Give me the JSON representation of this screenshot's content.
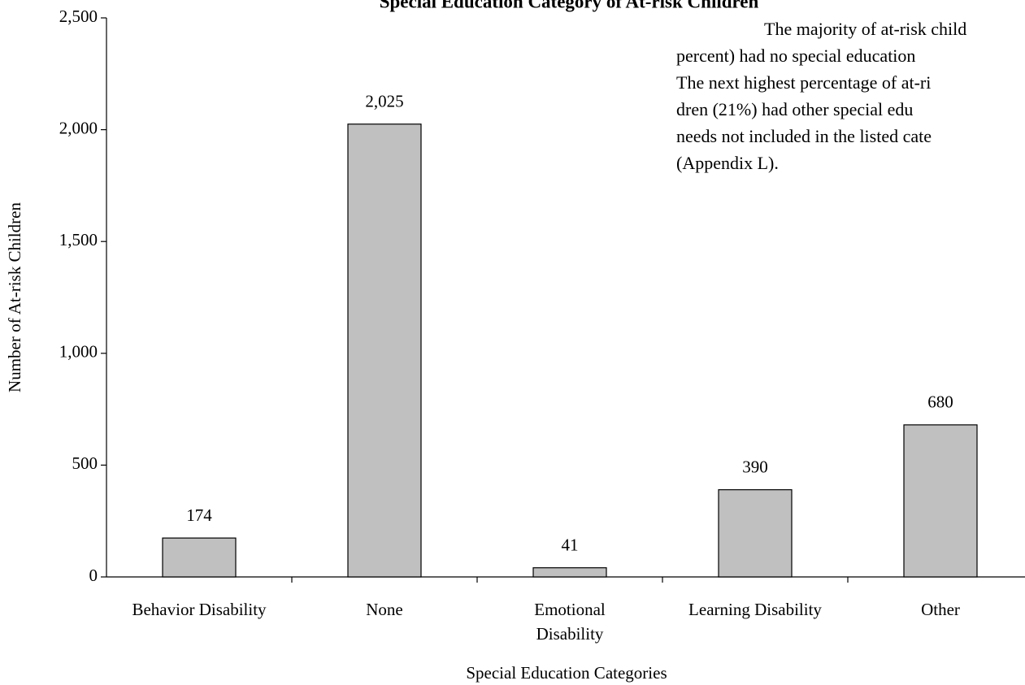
{
  "chart_data": {
    "type": "bar",
    "title": "Special Education Category of At-risk Children",
    "categories": [
      "Behavior Disability",
      "None",
      "Emotional\nDisability",
      "Learning Disability",
      "Other"
    ],
    "values": [
      174,
      2025,
      41,
      390,
      680
    ],
    "value_labels": [
      "174",
      "2,025",
      "41",
      "390",
      "680"
    ],
    "color": "#c0c0c0",
    "ylim": [
      0,
      2500
    ],
    "yticks": [
      0,
      {
        "value": 500,
        "label": "500"
      },
      {
        "value": 1000,
        "label": "1,000"
      },
      {
        "value": 1500,
        "label": "1,500"
      },
      {
        "value": 2000,
        "label": "2,000"
      },
      {
        "value": 2500,
        "label": "2,500"
      }
    ],
    "ylabel": "Number of At-risk Children",
    "xlabel": "Special Education Categories",
    "grid": false,
    "annotations": [
      "The majority of at-risk child",
      "percent) had no special education",
      "The next highest percentage of at-ri",
      "dren (21%) had other special edu",
      "needs not included in the listed cate",
      "(Appendix L)."
    ]
  }
}
